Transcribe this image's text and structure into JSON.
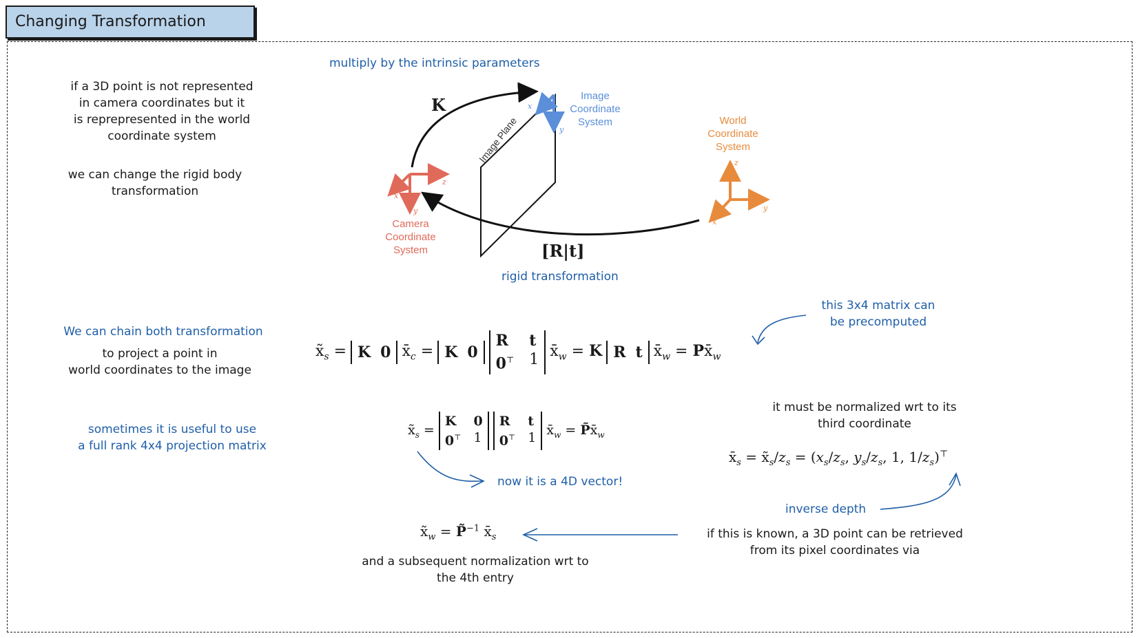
{
  "title": "Changing Transformation",
  "left_notes": {
    "note1": [
      "if a 3D point is not represented",
      "in camera coordinates but it",
      "is reprepresented in the world",
      "coordinate system"
    ],
    "note2": [
      "we can change the rigid body",
      "transformation"
    ],
    "chain_heading": "We can chain both transformation",
    "chain_body": [
      "to project a point in",
      "world coordinates to the image"
    ],
    "full_rank": [
      "sometimes it is useful to use",
      "a full rank 4x4 projection matrix"
    ]
  },
  "diagram": {
    "top_annotation": "multiply by the intrinsic parameters",
    "bottom_annotation": "rigid transformation",
    "k_label": "K",
    "rt_label": "[R|t]",
    "image_plane": "Image Plane",
    "image_cs": [
      "Image",
      "Coordinate",
      "System"
    ],
    "world_cs": [
      "World",
      "Coordinate",
      "System"
    ],
    "camera_cs": [
      "Camera",
      "Coordinate",
      "System"
    ],
    "axes": {
      "x": "x",
      "y": "y",
      "z": "z"
    },
    "colors": {
      "image": "#5b8fd9",
      "world": "#e88a3c",
      "camera": "#e06a5a",
      "annotation": "#1f5fa8"
    }
  },
  "equations": {
    "chain_eq": "x̃ₛ = [K 0] x̄_c = [K 0] [R t; 0ᵀ 1] x̄_w = K [R t] x̄_w = P x̄_w",
    "full_eq": "x̃ₛ = [K 0; 0ᵀ 1] [R t; 0ᵀ 1] x̄_w = P̃ x̄_w",
    "norm_eq": "x̄ₛ = x̃ₛ/zₛ = (xₛ/zₛ, yₛ/zₛ, 1, 1/zₛ)ᵀ",
    "inverse_eq": "x̃_w = P̃⁻¹ x̄ₛ"
  },
  "right_notes": {
    "precomputed": [
      "this 3x4 matrix can",
      "be precomputed"
    ],
    "normalized": [
      "it must be normalized wrt to its",
      "third coordinate"
    ],
    "vector4d": "now it is a 4D vector!",
    "inverse_depth": "inverse depth",
    "retrieved": [
      "if this is known, a 3D point can be retrieved",
      "from its pixel coordinates via"
    ],
    "subsequent": [
      "and a subsequent normalization wrt to",
      "the 4th entry"
    ]
  }
}
